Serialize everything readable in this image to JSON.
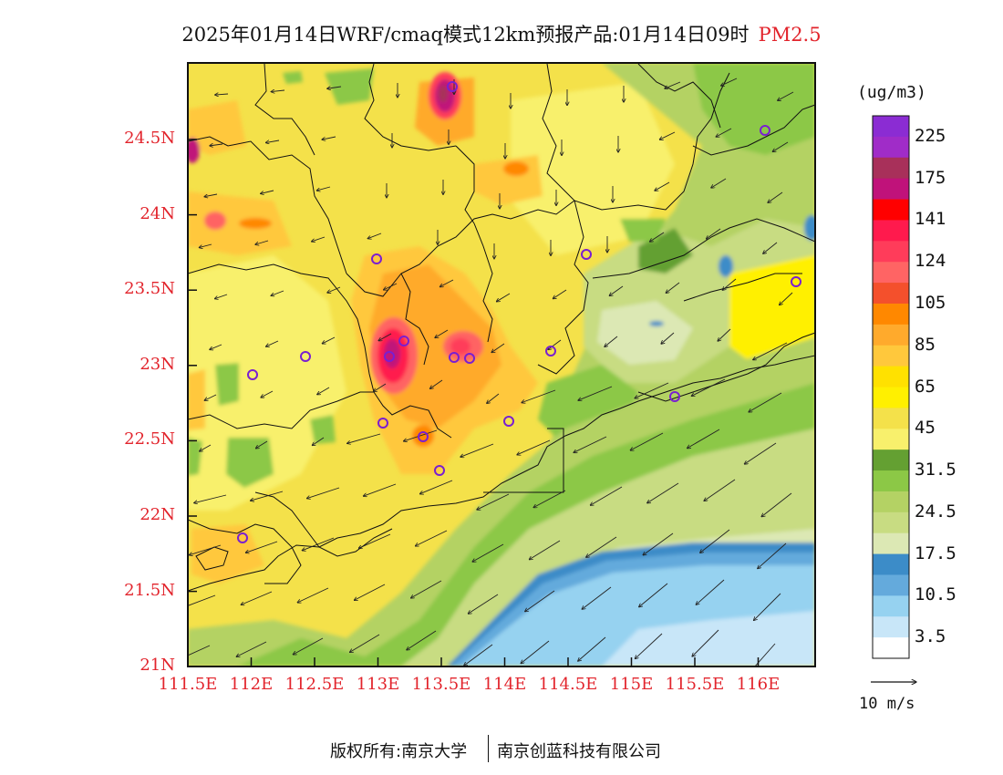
{
  "title": {
    "main": "2025年01月14日WRF/cmaq模式12km预报产品:01月14日09时",
    "pollutant": "PM2.5"
  },
  "axes": {
    "lat_labels": [
      "24.5N",
      "24N",
      "23.5N",
      "23N",
      "22.5N",
      "22N",
      "21.5N",
      "21N"
    ],
    "lon_labels": [
      "111.5E",
      "112E",
      "112.5E",
      "113E",
      "113.5E",
      "114E",
      "114.5E",
      "115E",
      "115.5E",
      "116E"
    ]
  },
  "colorbar": {
    "units": "(ug/m3)",
    "labels": [
      "225",
      "175",
      "141",
      "124",
      "105",
      "85",
      "65",
      "45",
      "31.5",
      "24.5",
      "17.5",
      "10.5",
      "3.5"
    ],
    "colors": [
      "#8b2cd3",
      "#a02cc8",
      "#a8305a",
      "#c0127a",
      "#ff0000",
      "#ff1a4d",
      "#ff3c5a",
      "#ff6464",
      "#f4502c",
      "#ff8800",
      "#ffaa2c",
      "#ffc83c",
      "#ffe100",
      "#fff000",
      "#f4e14a",
      "#f8f06c",
      "#64a032",
      "#8cc846",
      "#b4d264",
      "#c8dc82",
      "#dce8b4",
      "#3c8cc8",
      "#64aadc",
      "#96d2f0",
      "#c8e6f8",
      "#ffffff"
    ]
  },
  "wind_reference": "10 m/s",
  "footer": {
    "copyright": "版权所有:南京大学",
    "company": "南京创蓝科技有限公司"
  }
}
